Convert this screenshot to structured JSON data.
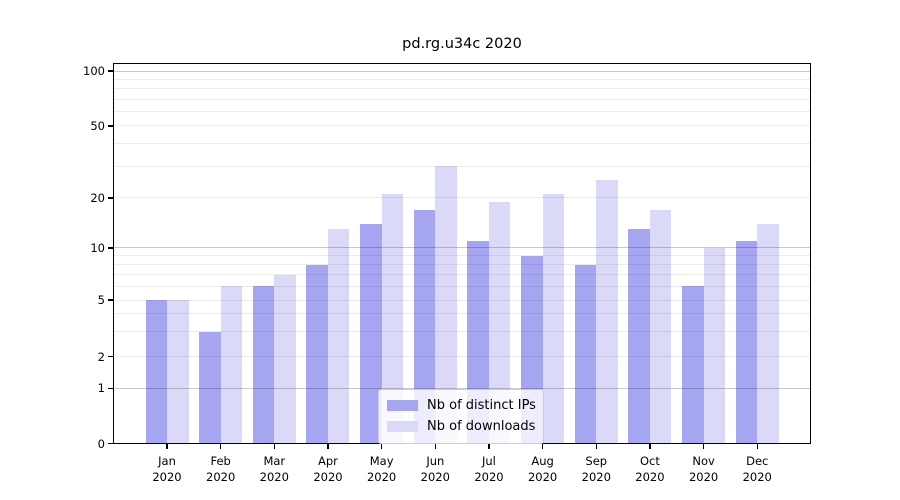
{
  "chart_data": {
    "type": "bar",
    "title": "pd.rg.u34c 2020",
    "categories": [
      "Jan",
      "Feb",
      "Mar",
      "Apr",
      "May",
      "Jun",
      "Jul",
      "Aug",
      "Sep",
      "Oct",
      "Nov",
      "Dec"
    ],
    "year_label": "2020",
    "series": [
      {
        "name": "Nb of distinct IPs",
        "color": "#a5a5f2",
        "values": [
          5,
          3,
          6,
          8,
          14,
          17,
          11,
          9,
          8,
          13,
          6,
          11
        ]
      },
      {
        "name": "Nb of downloads",
        "color": "#dadaf8",
        "values": [
          5,
          6,
          7,
          13,
          21,
          30,
          19,
          21,
          25,
          17,
          10,
          14
        ]
      }
    ],
    "xlabel": "",
    "ylabel": "",
    "ylim": [
      0,
      100
    ],
    "yscale": "log-like with linear segment below 1",
    "grid": "on",
    "legend_position": "lower center",
    "y_scale_anchor_fractions": [
      [
        0,
        0.0
      ],
      [
        1,
        0.145
      ],
      [
        2,
        0.2279
      ],
      [
        5,
        0.3768
      ],
      [
        10,
        0.5134
      ],
      [
        20,
        0.6447
      ],
      [
        50,
        0.8338
      ],
      [
        100,
        0.9782
      ]
    ]
  },
  "y_axis": {
    "ticks": [
      {
        "value": 100,
        "label": "100",
        "major": true
      },
      {
        "value": 50,
        "label": "50",
        "major": false
      },
      {
        "value": 20,
        "label": "20",
        "major": false
      },
      {
        "value": 10,
        "label": "10",
        "major": true
      },
      {
        "value": 5,
        "label": "5",
        "major": false
      },
      {
        "value": 2,
        "label": "2",
        "major": false
      },
      {
        "value": 1,
        "label": "1",
        "major": true
      },
      {
        "value": 0,
        "label": "0",
        "major": false
      }
    ],
    "minor_gridlines": [
      3,
      4,
      6,
      7,
      8,
      9,
      30,
      40,
      60,
      70,
      80,
      90
    ]
  },
  "legend": {
    "items": [
      {
        "label": "Nb of distinct IPs",
        "series": "ips"
      },
      {
        "label": "Nb of downloads",
        "series": "downloads"
      }
    ]
  },
  "colors": {
    "ips_bar": "#a5a5f2",
    "downloads_bar": "#dadaf8",
    "spine": "#000000",
    "background": "#ffffff"
  }
}
